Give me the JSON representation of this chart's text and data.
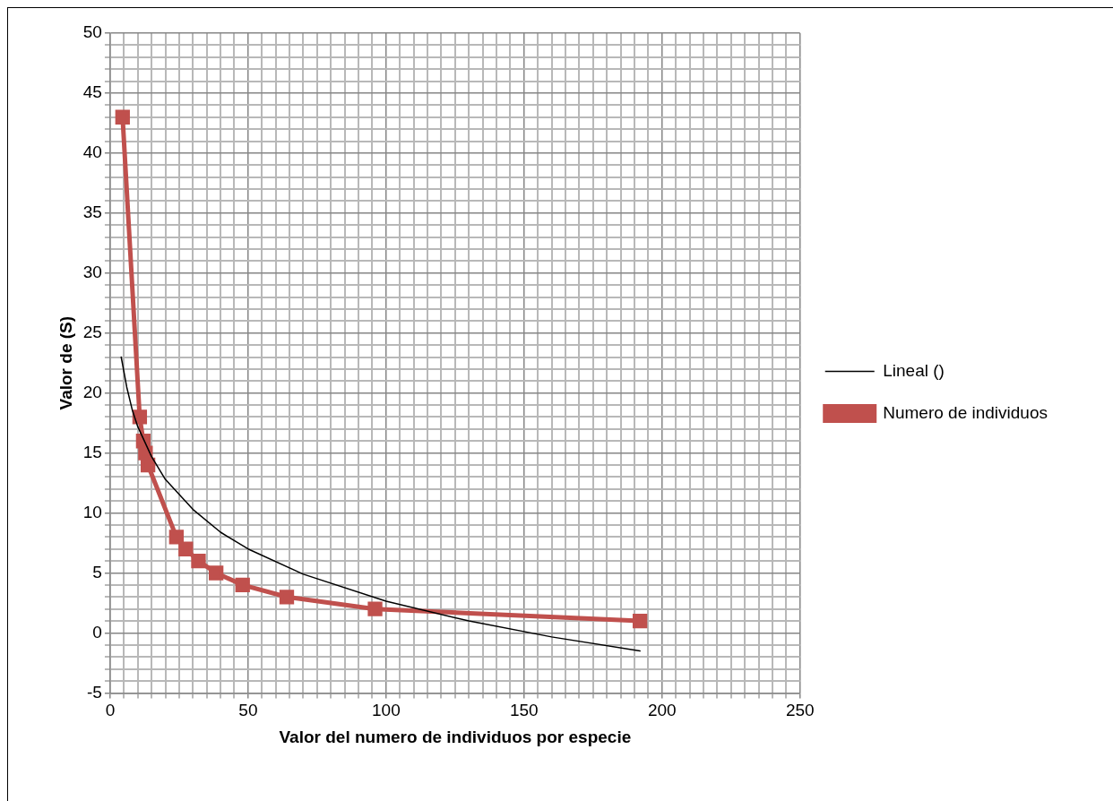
{
  "chart_data": {
    "type": "line",
    "xlabel": "Valor del numero de individuos por especie",
    "ylabel": "Valor de (S)",
    "series": [
      {
        "name": "Numero de individuos",
        "color": "#c0504d",
        "marker": "square",
        "x": [
          4.5,
          10.7,
          12,
          12.8,
          13.7,
          24,
          27.4,
          32,
          38.4,
          48,
          64,
          96,
          192
        ],
        "values": [
          43,
          18,
          16,
          15,
          14,
          8,
          7,
          6,
          5,
          4,
          3,
          2,
          1
        ]
      },
      {
        "name": "Lineal ()",
        "color": "#000000",
        "marker": "none",
        "x": [
          4,
          6,
          8,
          10,
          15,
          20,
          30,
          40,
          50,
          70,
          100,
          130,
          160,
          192
        ],
        "values": [
          23.0,
          20.5,
          18.6,
          17.2,
          14.7,
          12.8,
          10.3,
          8.4,
          7.0,
          4.9,
          2.65,
          1.0,
          -0.33,
          -1.5
        ]
      }
    ],
    "xlim": [
      0,
      250
    ],
    "ylim": [
      -5,
      50
    ],
    "xticks": [
      0,
      {
        "value": 5,
        "label": null
      },
      {
        "value": 10,
        "label": null
      },
      {
        "value": 15,
        "label": null
      },
      {
        "value": 20,
        "label": null
      },
      {
        "value": 25,
        "label": null
      },
      {
        "value": 30,
        "label": null
      },
      {
        "value": 35,
        "label": null
      },
      {
        "value": 40,
        "label": null
      },
      {
        "value": 45,
        "label": null
      },
      50,
      {
        "value": 55,
        "label": null
      },
      {
        "value": 60,
        "label": null
      },
      {
        "value": 65,
        "label": null
      },
      {
        "value": 70,
        "label": null
      },
      {
        "value": 75,
        "label": null
      },
      {
        "value": 80,
        "label": null
      },
      {
        "value": 85,
        "label": null
      },
      {
        "value": 90,
        "label": null
      },
      {
        "value": 95,
        "label": null
      },
      100,
      {
        "value": 105,
        "label": null
      },
      {
        "value": 110,
        "label": null
      },
      {
        "value": 115,
        "label": null
      },
      {
        "value": 120,
        "label": null
      },
      {
        "value": 125,
        "label": null
      },
      {
        "value": 130,
        "label": null
      },
      {
        "value": 135,
        "label": null
      },
      {
        "value": 140,
        "label": null
      },
      {
        "value": 145,
        "label": null
      },
      150,
      {
        "value": 155,
        "label": null
      },
      {
        "value": 160,
        "label": null
      },
      {
        "value": 165,
        "label": null
      },
      {
        "value": 170,
        "label": null
      },
      {
        "value": 175,
        "label": null
      },
      {
        "value": 180,
        "label": null
      },
      {
        "value": 185,
        "label": null
      },
      {
        "value": 190,
        "label": null
      },
      {
        "value": 195,
        "label": null
      },
      200,
      {
        "value": 205,
        "label": null
      },
      {
        "value": 210,
        "label": null
      },
      {
        "value": 215,
        "label": null
      },
      {
        "value": 220,
        "label": null
      },
      {
        "value": 225,
        "label": null
      },
      {
        "value": 230,
        "label": null
      },
      {
        "value": 235,
        "label": null
      },
      {
        "value": 240,
        "label": null
      },
      {
        "value": 245,
        "label": null
      },
      250
    ],
    "yticks": [
      -5,
      {
        "value": -4,
        "label": null
      },
      {
        "value": -3,
        "label": null
      },
      {
        "value": -2,
        "label": null
      },
      {
        "value": -1,
        "label": null
      },
      0,
      {
        "value": 1,
        "label": null
      },
      {
        "value": 2,
        "label": null
      },
      {
        "value": 3,
        "label": null
      },
      {
        "value": 4,
        "label": null
      },
      5,
      {
        "value": 6,
        "label": null
      },
      {
        "value": 7,
        "label": null
      },
      {
        "value": 8,
        "label": null
      },
      {
        "value": 9,
        "label": null
      },
      10,
      {
        "value": 11,
        "label": null
      },
      {
        "value": 12,
        "label": null
      },
      {
        "value": 13,
        "label": null
      },
      {
        "value": 14,
        "label": null
      },
      15,
      {
        "value": 16,
        "label": null
      },
      {
        "value": 17,
        "label": null
      },
      {
        "value": 18,
        "label": null
      },
      {
        "value": 19,
        "label": null
      },
      20,
      {
        "value": 21,
        "label": null
      },
      {
        "value": 22,
        "label": null
      },
      {
        "value": 23,
        "label": null
      },
      {
        "value": 24,
        "label": null
      },
      25,
      {
        "value": 26,
        "label": null
      },
      {
        "value": 27,
        "label": null
      },
      {
        "value": 28,
        "label": null
      },
      {
        "value": 29,
        "label": null
      },
      30,
      {
        "value": 31,
        "label": null
      },
      {
        "value": 32,
        "label": null
      },
      {
        "value": 33,
        "label": null
      },
      {
        "value": 34,
        "label": null
      },
      35,
      {
        "value": 36,
        "label": null
      },
      {
        "value": 37,
        "label": null
      },
      {
        "value": 38,
        "label": null
      },
      {
        "value": 39,
        "label": null
      },
      40,
      {
        "value": 41,
        "label": null
      },
      {
        "value": 42,
        "label": null
      },
      {
        "value": 43,
        "label": null
      },
      {
        "value": 44,
        "label": null
      },
      45,
      {
        "value": 46,
        "label": null
      },
      {
        "value": 47,
        "label": null
      },
      {
        "value": 48,
        "label": null
      },
      {
        "value": 49,
        "label": null
      },
      50
    ],
    "grid": true,
    "legend": "right"
  }
}
